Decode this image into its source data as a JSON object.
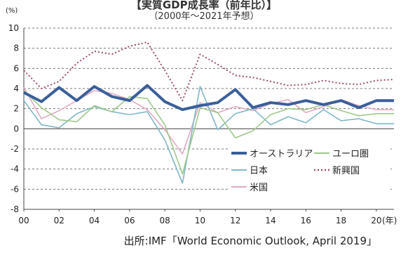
{
  "chart_data": {
    "type": "line",
    "title": "【実質GDP成長率（前年比）】",
    "subtitle": "（2000年～2021年予想）",
    "ylabel": "(%)",
    "xlabel_unit": "(年)",
    "ylim": [
      -8,
      10
    ],
    "yticks": [
      -8,
      -6,
      -4,
      -2,
      0,
      2,
      4,
      6,
      8,
      10
    ],
    "x": [
      2000,
      2001,
      2002,
      2003,
      2004,
      2005,
      2006,
      2007,
      2008,
      2009,
      2010,
      2011,
      2012,
      2013,
      2014,
      2015,
      2016,
      2017,
      2018,
      2019,
      2020,
      2021
    ],
    "xticks": [
      "00",
      "02",
      "04",
      "06",
      "08",
      "10",
      "12",
      "14",
      "16",
      "18",
      "20"
    ],
    "grid": "horizontal dashed",
    "legend_position": "lower-right",
    "series": [
      {
        "name": "オーストラリア",
        "color": "#3a5f9a",
        "style": "solid-thick",
        "values": [
          3.6,
          2.7,
          4.1,
          2.8,
          4.2,
          3.2,
          2.8,
          4.3,
          2.7,
          1.9,
          2.3,
          2.6,
          3.9,
          2.1,
          2.6,
          2.4,
          2.8,
          2.4,
          2.8,
          2.1,
          2.8,
          2.8
        ]
      },
      {
        "name": "ユーロ圏",
        "color": "#9ec98a",
        "style": "solid",
        "values": [
          3.8,
          2.1,
          0.9,
          0.7,
          2.3,
          1.7,
          3.2,
          3.0,
          0.4,
          -4.5,
          2.1,
          1.6,
          -0.9,
          -0.2,
          1.4,
          2.0,
          1.9,
          2.4,
          1.8,
          1.3,
          1.5,
          1.5
        ]
      },
      {
        "name": "日本",
        "color": "#7fb7c6",
        "style": "solid",
        "values": [
          2.8,
          0.4,
          0.1,
          1.5,
          2.2,
          1.7,
          1.4,
          1.7,
          -1.1,
          -5.4,
          4.2,
          -0.1,
          1.5,
          2.0,
          0.4,
          1.2,
          0.6,
          1.9,
          0.8,
          1.0,
          0.5,
          0.5
        ]
      },
      {
        "name": "新興国",
        "color": "#a34a6b",
        "style": "dotted",
        "values": [
          5.8,
          4.0,
          4.7,
          6.5,
          7.7,
          7.4,
          8.2,
          8.6,
          5.8,
          2.8,
          7.4,
          6.4,
          5.3,
          5.1,
          4.7,
          4.3,
          4.4,
          4.8,
          4.5,
          4.4,
          4.8,
          4.9
        ]
      },
      {
        "name": "米国",
        "color": "#e2a9c4",
        "style": "solid",
        "values": [
          4.1,
          1.0,
          1.8,
          2.8,
          3.8,
          3.5,
          2.9,
          1.9,
          -0.1,
          -2.5,
          2.6,
          1.6,
          2.2,
          1.8,
          2.5,
          2.9,
          1.6,
          2.2,
          2.9,
          2.3,
          1.9,
          1.9
        ]
      }
    ]
  },
  "source": "出所:IMF「World Economic Outlook, April 2019」"
}
